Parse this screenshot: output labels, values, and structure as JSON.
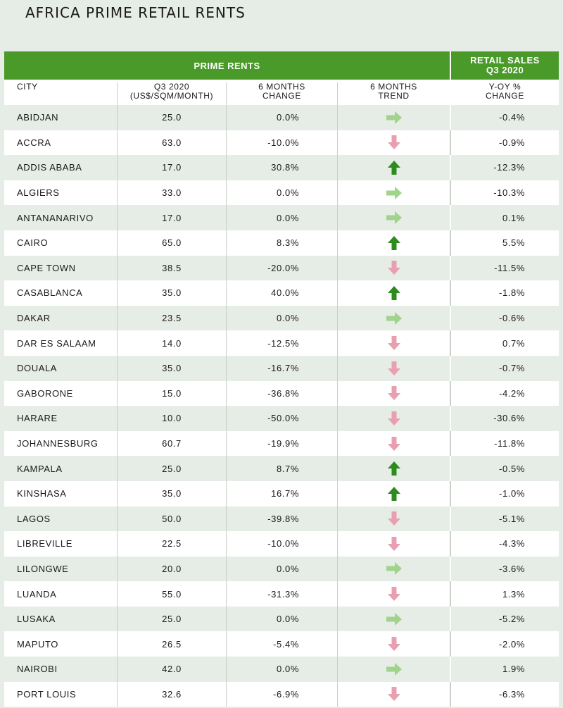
{
  "title": "AFRICA PRIME RETAIL RENTS",
  "header": {
    "prime_rents": "PRIME RENTS",
    "retail_sales_1": "RETAIL SALES",
    "retail_sales_2": "Q3 2020"
  },
  "columns": {
    "city": "CITY",
    "rent_1": "Q3 2020",
    "rent_2": "(US$/SQM/MONTH)",
    "change_1": "6 MONTHS",
    "change_2": "CHANGE",
    "trend_1": "6 MONTHS",
    "trend_2": "TREND",
    "yoy_1": "Y-OY %",
    "yoy_2": "CHANGE"
  },
  "colors": {
    "header_green": "#4a9a2a",
    "up_arrow": "#2e8b1e",
    "flat_arrow": "#9fd48a",
    "down_arrow": "#e8a0b0"
  },
  "rows": [
    {
      "city": "ABIDJAN",
      "rent": "25.0",
      "change": "0.0%",
      "trend": "flat",
      "yoy": "-0.4%"
    },
    {
      "city": "ACCRA",
      "rent": "63.0",
      "change": "-10.0%",
      "trend": "down",
      "yoy": "-0.9%"
    },
    {
      "city": "ADDIS ABABA",
      "rent": "17.0",
      "change": "30.8%",
      "trend": "up",
      "yoy": "-12.3%"
    },
    {
      "city": "ALGIERS",
      "rent": "33.0",
      "change": "0.0%",
      "trend": "flat",
      "yoy": "-10.3%"
    },
    {
      "city": "ANTANANARIVO",
      "rent": "17.0",
      "change": "0.0%",
      "trend": "flat",
      "yoy": "0.1%"
    },
    {
      "city": "CAIRO",
      "rent": "65.0",
      "change": "8.3%",
      "trend": "up",
      "yoy": "5.5%"
    },
    {
      "city": "CAPE TOWN",
      "rent": "38.5",
      "change": "-20.0%",
      "trend": "down",
      "yoy": "-11.5%"
    },
    {
      "city": "CASABLANCA",
      "rent": "35.0",
      "change": "40.0%",
      "trend": "up",
      "yoy": "-1.8%"
    },
    {
      "city": "DAKAR",
      "rent": "23.5",
      "change": "0.0%",
      "trend": "flat",
      "yoy": "-0.6%"
    },
    {
      "city": "DAR ES SALAAM",
      "rent": "14.0",
      "change": "-12.5%",
      "trend": "down",
      "yoy": "0.7%"
    },
    {
      "city": "DOUALA",
      "rent": "35.0",
      "change": "-16.7%",
      "trend": "down",
      "yoy": "-0.7%"
    },
    {
      "city": "GABORONE",
      "rent": "15.0",
      "change": "-36.8%",
      "trend": "down",
      "yoy": "-4.2%"
    },
    {
      "city": "HARARE",
      "rent": "10.0",
      "change": "-50.0%",
      "trend": "down",
      "yoy": "-30.6%"
    },
    {
      "city": "JOHANNESBURG",
      "rent": "60.7",
      "change": "-19.9%",
      "trend": "down",
      "yoy": "-11.8%"
    },
    {
      "city": "KAMPALA",
      "rent": "25.0",
      "change": "8.7%",
      "trend": "up",
      "yoy": "-0.5%"
    },
    {
      "city": "KINSHASA",
      "rent": "35.0",
      "change": "16.7%",
      "trend": "up",
      "yoy": "-1.0%"
    },
    {
      "city": "LAGOS",
      "rent": "50.0",
      "change": "-39.8%",
      "trend": "down",
      "yoy": "-5.1%"
    },
    {
      "city": "LIBREVILLE",
      "rent": "22.5",
      "change": "-10.0%",
      "trend": "down",
      "yoy": "-4.3%"
    },
    {
      "city": "LILONGWE",
      "rent": "20.0",
      "change": "0.0%",
      "trend": "flat",
      "yoy": "-3.6%"
    },
    {
      "city": "LUANDA",
      "rent": "55.0",
      "change": "-31.3%",
      "trend": "down",
      "yoy": "1.3%"
    },
    {
      "city": "LUSAKA",
      "rent": "25.0",
      "change": "0.0%",
      "trend": "flat",
      "yoy": "-5.2%"
    },
    {
      "city": "MAPUTO",
      "rent": "26.5",
      "change": "-5.4%",
      "trend": "down",
      "yoy": "-2.0%"
    },
    {
      "city": "NAIROBI",
      "rent": "42.0",
      "change": "0.0%",
      "trend": "flat",
      "yoy": "1.9%"
    },
    {
      "city": "PORT LOUIS",
      "rent": "32.6",
      "change": "-6.9%",
      "trend": "down",
      "yoy": "-6.3%"
    }
  ]
}
